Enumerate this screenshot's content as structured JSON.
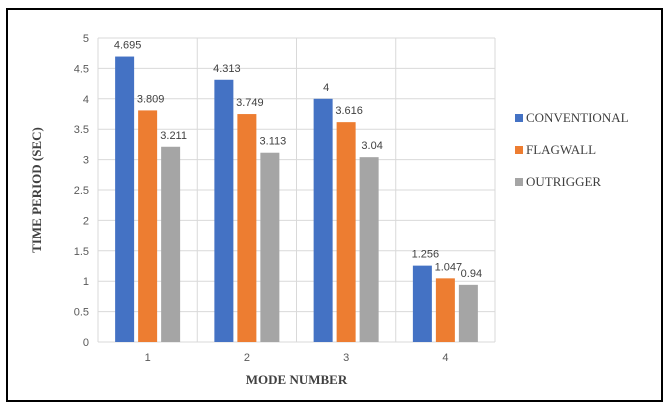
{
  "chart_data": {
    "type": "bar",
    "title": "",
    "xlabel": "MODE NUMBER",
    "ylabel": "TIME PERIOD (SEC)",
    "categories": [
      "1",
      "2",
      "3",
      "4"
    ],
    "ylim": [
      0,
      5
    ],
    "yticks": [
      "0",
      "0.5",
      "1",
      "1.5",
      "2",
      "2.5",
      "3",
      "3.5",
      "4",
      "4.5",
      "5"
    ],
    "grid": "on",
    "legend_position": "right",
    "series": [
      {
        "name": "CONVENTIONAL",
        "color": "#4472C4",
        "values": [
          4.695,
          4.313,
          4,
          1.256
        ],
        "labels": [
          "4.695",
          "4.313",
          "4",
          "1.256"
        ]
      },
      {
        "name": "FLAGWALL",
        "color": "#ED7D31",
        "values": [
          3.809,
          3.749,
          3.616,
          1.047
        ],
        "labels": [
          "3.809",
          "3.749",
          "3.616",
          "1.047"
        ]
      },
      {
        "name": "OUTRIGGER",
        "color": "#A5A5A5",
        "values": [
          3.211,
          3.113,
          3.04,
          0.94
        ],
        "labels": [
          "3.211",
          "3.113",
          "3.04",
          "0.94"
        ]
      }
    ]
  }
}
